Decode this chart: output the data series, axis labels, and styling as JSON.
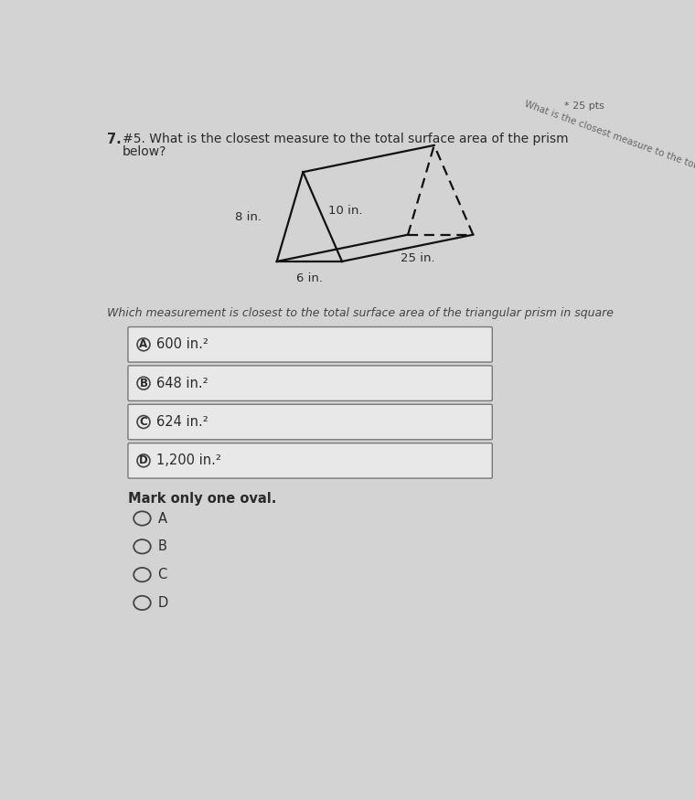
{
  "bg_color": "#d3d3d3",
  "question_number": "7.",
  "question_line1": "#5. What is the closest measure to the total surface area of the prism",
  "question_line2": "below?",
  "sub_question": "Which measurement is closest to the total surface area of the triangular prism in square",
  "top_right_text": "* 25 pts",
  "top_right_diag": "What is the closest measure to the total surface area of the prism",
  "prism_dims": {
    "side_a": "8 in.",
    "side_b": "10 in.",
    "length": "25 in.",
    "base": "6 in."
  },
  "options": [
    {
      "label": "A",
      "text": "600 in.²"
    },
    {
      "label": "B",
      "text": "648 in.²"
    },
    {
      "label": "C",
      "text": "624 in.²"
    },
    {
      "label": "D",
      "text": "1,200 in.²"
    }
  ],
  "mark_text": "Mark only one oval.",
  "oval_labels": [
    "A",
    "B",
    "C",
    "D"
  ],
  "text_color": "#2a2a2a",
  "box_color": "#e8e8e8",
  "box_edge_color": "#777777"
}
